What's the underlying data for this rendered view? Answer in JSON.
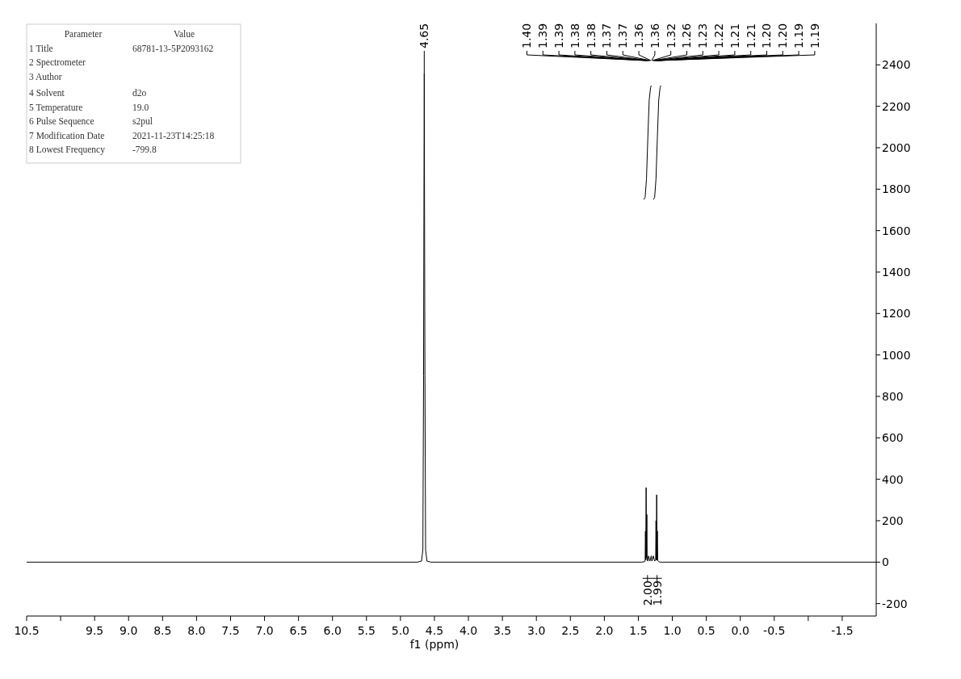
{
  "chart_data": {
    "type": "line",
    "xlabel": "f1 (ppm)",
    "xlim": [
      10.5,
      -2.0
    ],
    "xticks": [
      10.5,
      {
        "value": 10.0,
        "label": null
      },
      9.5,
      {
        "value": 9,
        "label": "9.0"
      },
      8.5,
      {
        "value": 8,
        "label": "8.0"
      },
      7.5,
      {
        "value": 7,
        "label": "7.0"
      },
      6.5,
      {
        "value": 6,
        "label": "6.0"
      },
      5.5,
      {
        "value": 5,
        "label": "5.0"
      },
      4.5,
      {
        "value": 4,
        "label": "4.0"
      },
      3.5,
      {
        "value": 3,
        "label": "3.0"
      },
      2.5,
      {
        "value": 2,
        "label": "2.0"
      },
      1.5,
      {
        "value": 1,
        "label": "1.0"
      },
      0.5,
      {
        "value": 0,
        "label": "0.0"
      },
      -0.5,
      {
        "value": -1.0,
        "label": null
      },
      -1.5
    ],
    "ylim": [
      -260,
      2600
    ],
    "yticks": [
      -200,
      0,
      200,
      400,
      600,
      800,
      1000,
      1200,
      1400,
      1600,
      1800,
      2000,
      2200,
      2400
    ],
    "grid": false,
    "marker": "none",
    "line_style": "solid",
    "series": [
      {
        "color": "#000000",
        "x": [
          10.5,
          4.75,
          4.69,
          4.67,
          4.66,
          4.65,
          4.64,
          4.63,
          4.61,
          4.55,
          1.45,
          1.41,
          1.4,
          1.395,
          1.39,
          1.385,
          1.38,
          1.375,
          1.37,
          1.36,
          1.35,
          1.33,
          1.31,
          1.3,
          1.28,
          1.26,
          1.245,
          1.24,
          1.235,
          1.23,
          1.225,
          1.22,
          1.215,
          1.21,
          1.2,
          1.19,
          1.17,
          -2.0
        ],
        "values": [
          0,
          0,
          5,
          60,
          900,
          2360,
          900,
          60,
          5,
          0,
          0,
          2,
          10,
          150,
          10,
          360,
          20,
          230,
          10,
          5,
          30,
          5,
          30,
          5,
          30,
          5,
          10,
          200,
          10,
          325,
          10,
          150,
          10,
          5,
          2,
          1,
          0,
          0
        ]
      },
      {
        "color": "#000000",
        "x": [
          1.42,
          1.4,
          1.38,
          1.36,
          1.34,
          1.32,
          1.31
        ],
        "values": [
          1750,
          1760,
          1850,
          2050,
          2230,
          2290,
          2300
        ]
      },
      {
        "color": "#000000",
        "x": [
          1.28,
          1.26,
          1.24,
          1.22,
          1.2,
          1.18,
          1.17
        ],
        "values": [
          1750,
          1760,
          1850,
          2050,
          2230,
          2290,
          2300
        ]
      }
    ],
    "annotations": [
      "Parameter\tValue",
      "1 Title\t68781-13-5P2093162",
      "2 Spectrometer",
      "3 Author",
      "4 Solvent\td2o",
      "5 Temperature\t19.0",
      "6 Pulse Sequence\ts2pul",
      "7 Modification Date\t2021-11-23T14:25:18",
      "8 Lowest Frequency\t-799.8",
      {
        "text": "4.65",
        "x": 4.65,
        "y": 2360
      },
      "1.40",
      "1.39",
      "1.39",
      "1.38",
      "1.38",
      "1.37",
      "1.37",
      "1.36",
      "1.36",
      "1.32",
      "1.26",
      "1.23",
      "1.22",
      "1.21",
      "1.21",
      "1.20",
      "1.20",
      "1.19",
      "1.19",
      "2.00",
      "1.99"
    ]
  }
}
